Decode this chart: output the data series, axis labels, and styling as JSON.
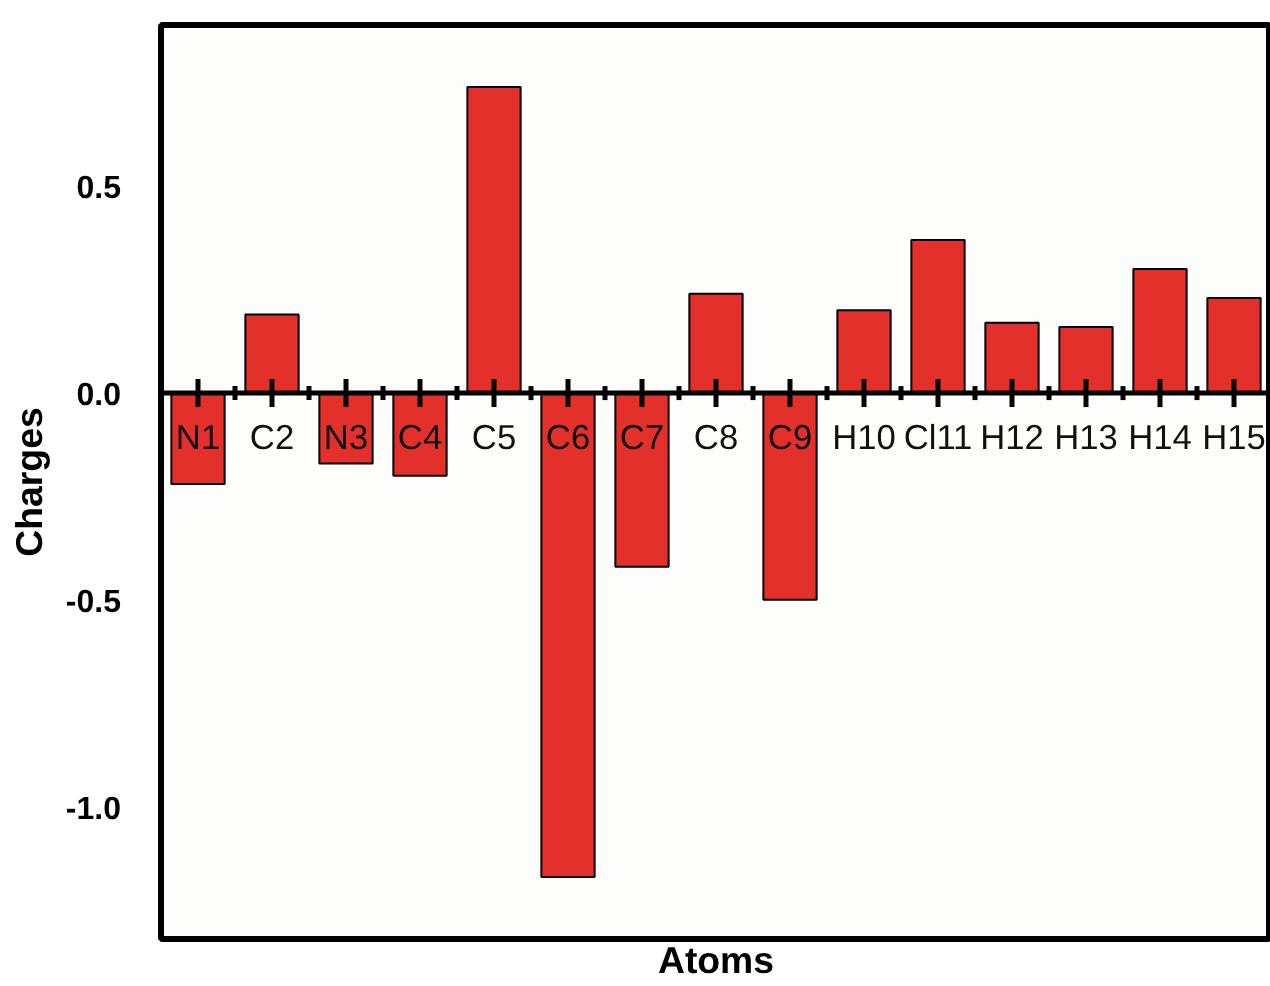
{
  "chart_data": {
    "type": "bar",
    "xlabel": "Atoms",
    "ylabel": "Charges",
    "categories": [
      "N1",
      "C2",
      "N3",
      "C4",
      "C5",
      "C6",
      "C7",
      "C8",
      "C9",
      "H10",
      "Cl11",
      "H12",
      "H13",
      "H14",
      "H15"
    ],
    "values": [
      -0.22,
      0.19,
      -0.17,
      -0.2,
      0.74,
      -1.17,
      -0.42,
      0.24,
      -0.5,
      0.2,
      0.37,
      0.17,
      0.16,
      0.3,
      0.23
    ],
    "color": "#e3302b",
    "ylim": [
      -1.32,
      0.89
    ],
    "yticks": [
      {
        "value": -1,
        "label": "-1.0"
      },
      -0.5,
      {
        "value": 0,
        "label": "0.0"
      },
      0.5
    ],
    "grid": false
  }
}
